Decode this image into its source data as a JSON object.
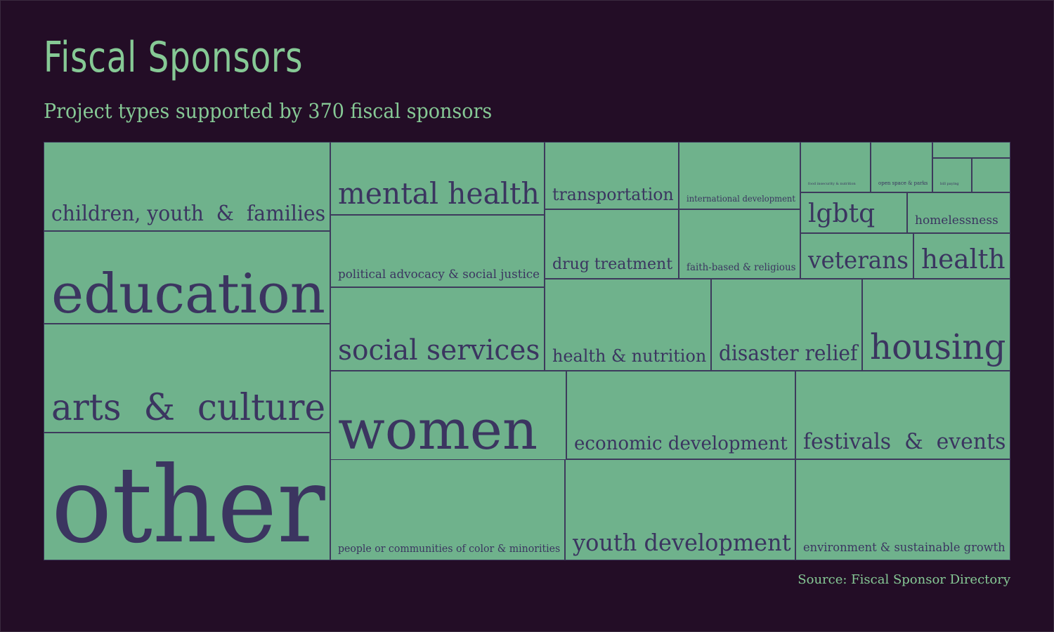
{
  "title": "Fiscal Sponsors",
  "subtitle": "Project types supported by 370 fiscal sponsors",
  "source": "Source: Fiscal Sponsor Directory",
  "colors": {
    "background": "#230d26",
    "cell_fill": "#6fb28c",
    "cell_border": "#3d3a5c",
    "cell_text": "#3b3560",
    "title_text": "#86c995"
  },
  "chart_data": {
    "type": "treemap",
    "title": "Fiscal Sponsors",
    "subtitle": "Project types supported by 370 fiscal sponsors",
    "categories": [
      "other",
      "education",
      "arts  &  culture",
      "children, youth  &  families",
      "women",
      "mental health",
      "social services",
      "political advocacy & social justice",
      "youth development",
      "people or communities of color & minorities",
      "economic development",
      "festivals  &  events",
      "environment & sustainable growth",
      "health & nutrition",
      "disaster relief",
      "housing",
      "transportation",
      "drug treatment",
      "international development",
      "faith-based & religious",
      "veterans",
      "health",
      "lgbtq",
      "homelessness",
      "food insecurity & nutrition",
      "open space & parks",
      "bill paying",
      "",
      "",
      ""
    ]
  }
}
